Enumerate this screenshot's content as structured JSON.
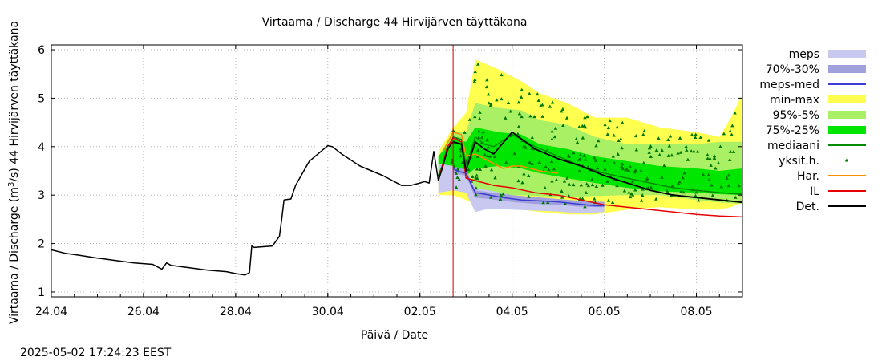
{
  "chart_data": {
    "type": "area",
    "title": "Virtaama / Discharge  44 Hirvijärven täyttäkana",
    "xlabel": "Päivä / Date",
    "ylabel_main": "Virtaama / Discharge (m",
    "ylabel_sup": "3",
    "ylabel_tail": "/s)  44 Hirvijärven täyttäkana",
    "x_unit": "days since 24.04",
    "xlim": [
      0,
      15
    ],
    "ylim": [
      0.9,
      6.1
    ],
    "x_ticks": [
      {
        "x": 0,
        "label": "24.04"
      },
      {
        "x": 2,
        "label": "26.04"
      },
      {
        "x": 4,
        "label": "28.04"
      },
      {
        "x": 6,
        "label": "30.04"
      },
      {
        "x": 8,
        "label": "02.05"
      },
      {
        "x": 10,
        "label": "04.05"
      },
      {
        "x": 12,
        "label": "06.05"
      },
      {
        "x": 14,
        "label": "08.05"
      }
    ],
    "y_ticks": [
      1,
      2,
      3,
      4,
      5,
      6
    ],
    "forecast_start_x": 8.72,
    "timestamp": "2025-05-02 17:24:23 EEST",
    "legend": [
      {
        "key": "meps",
        "label": "meps",
        "kind": "box",
        "color": "#c8c8f0"
      },
      {
        "key": "p7030",
        "label": "70%-30%",
        "kind": "box",
        "color": "#a0a0dc"
      },
      {
        "key": "meps_med",
        "label": "meps-med",
        "kind": "line",
        "color": "#3c3cd2"
      },
      {
        "key": "minmax",
        "label": "min-max",
        "kind": "box",
        "color": "#ffff50"
      },
      {
        "key": "p955",
        "label": "95%-5%",
        "kind": "box",
        "color": "#aaf064"
      },
      {
        "key": "p7525",
        "label": "75%-25%",
        "kind": "box",
        "color": "#00e600"
      },
      {
        "key": "median",
        "label": "mediaani",
        "kind": "line",
        "color": "#008c00"
      },
      {
        "key": "yksit",
        "label": "yksit.h.",
        "kind": "marker",
        "color": "#007800"
      },
      {
        "key": "har",
        "label": "Har.",
        "kind": "line",
        "color": "#ff8c00"
      },
      {
        "key": "il",
        "label": "IL",
        "kind": "line",
        "color": "#e60000"
      },
      {
        "key": "det",
        "label": "Det.",
        "kind": "line",
        "color": "#000000"
      }
    ],
    "observed": {
      "x": [
        0,
        0.3,
        0.6,
        1,
        1.4,
        1.8,
        2.2,
        2.4,
        2.5,
        2.6,
        3.0,
        3.4,
        3.8,
        4.0,
        4.2,
        4.3,
        4.35,
        4.4,
        4.8,
        4.95,
        5.0,
        5.05,
        5.2,
        5.3,
        5.6,
        6.0,
        6.1,
        6.3,
        6.7,
        7.2,
        7.6,
        7.8,
        8.0,
        8.1,
        8.2,
        8.3,
        8.4,
        8.5,
        8.6,
        8.72
      ],
      "y": [
        1.87,
        1.8,
        1.76,
        1.7,
        1.65,
        1.6,
        1.57,
        1.47,
        1.6,
        1.55,
        1.5,
        1.45,
        1.42,
        1.38,
        1.35,
        1.4,
        1.95,
        1.92,
        1.95,
        2.15,
        2.5,
        2.9,
        2.92,
        3.2,
        3.7,
        4.02,
        4.0,
        3.85,
        3.6,
        3.4,
        3.2,
        3.2,
        3.25,
        3.28,
        3.25,
        3.9,
        3.3,
        3.6,
        3.95,
        4.1
      ]
    },
    "series": [
      {
        "name": "meps-med",
        "x": [
          8.72,
          8.8,
          9.0,
          9.2,
          9.4,
          9.8,
          10.2,
          10.6,
          11.0,
          11.4,
          11.8,
          12.0
        ],
        "y": [
          3.55,
          3.5,
          3.45,
          3.05,
          3.02,
          2.95,
          2.9,
          2.88,
          2.86,
          2.82,
          2.78,
          2.78
        ]
      },
      {
        "name": "mediaani",
        "x": [
          8.4,
          8.6,
          8.72,
          8.9,
          9.0,
          9.2,
          9.4,
          9.6,
          10.0,
          10.5,
          11.0,
          11.5,
          12.0,
          12.5,
          13.0,
          13.5,
          14.0,
          14.5,
          15.0
        ],
        "y": [
          3.4,
          3.9,
          4.2,
          4.15,
          3.6,
          4.2,
          4.05,
          4.0,
          4.25,
          4.0,
          3.8,
          3.6,
          3.45,
          3.35,
          3.25,
          3.15,
          3.1,
          3.05,
          3.02
        ]
      },
      {
        "name": "Har.",
        "x": [
          8.5,
          8.72,
          8.9,
          9.0,
          9.2,
          9.4,
          9.6,
          9.8,
          10.0,
          10.2,
          10.6,
          11.0
        ],
        "y": [
          3.9,
          4.3,
          4.25,
          3.8,
          3.85,
          3.75,
          3.65,
          3.55,
          3.6,
          3.6,
          3.5,
          3.45
        ]
      },
      {
        "name": "IL",
        "x": [
          8.4,
          8.6,
          8.72,
          8.9,
          9.0,
          9.2,
          9.6,
          10.0,
          10.5,
          11.0,
          11.5,
          12.0,
          12.5,
          13.0,
          13.5,
          14.0,
          14.5,
          15.0
        ],
        "y": [
          3.3,
          4.0,
          4.18,
          4.1,
          3.35,
          3.3,
          3.2,
          3.15,
          3.05,
          3.0,
          2.9,
          2.8,
          2.75,
          2.7,
          2.65,
          2.6,
          2.57,
          2.55
        ]
      },
      {
        "name": "Det.",
        "x": [
          8.72,
          8.9,
          9.0,
          9.2,
          9.4,
          9.6,
          10.0,
          10.5,
          11.0,
          11.5,
          12.0,
          12.5,
          13.0,
          13.5,
          14.0,
          14.5,
          15.0
        ],
        "y": [
          4.1,
          4.05,
          3.5,
          4.1,
          3.95,
          3.85,
          4.3,
          3.95,
          3.75,
          3.6,
          3.4,
          3.25,
          3.1,
          3.0,
          2.95,
          2.9,
          2.85
        ]
      }
    ],
    "bands": [
      {
        "name": "min-max",
        "x": [
          8.4,
          8.72,
          9.0,
          9.2,
          9.7,
          10.2,
          10.6,
          11.2,
          11.8,
          12.5,
          13.2,
          14.0,
          14.5,
          14.75,
          15.0
        ],
        "lower": [
          3.0,
          3.0,
          2.9,
          2.8,
          2.75,
          2.7,
          2.65,
          2.6,
          2.6,
          2.7,
          2.75,
          2.7,
          2.7,
          2.75,
          2.85
        ],
        "upper": [
          3.9,
          4.4,
          4.7,
          5.8,
          5.6,
          5.35,
          5.1,
          4.9,
          4.6,
          4.6,
          4.4,
          4.3,
          4.2,
          4.6,
          5.1
        ]
      },
      {
        "name": "95%-5%",
        "x": [
          8.4,
          8.72,
          9.0,
          9.2,
          9.7,
          10.2,
          10.6,
          11.2,
          11.8,
          12.5,
          13.2,
          14.0,
          14.5,
          15.0
        ],
        "lower": [
          3.2,
          3.3,
          3.1,
          3.05,
          3.0,
          3.0,
          2.98,
          2.96,
          2.98,
          3.0,
          3.0,
          2.9,
          2.85,
          2.82
        ],
        "upper": [
          3.8,
          4.3,
          4.3,
          4.9,
          4.8,
          4.75,
          4.55,
          4.45,
          4.2,
          4.05,
          4.05,
          4.05,
          4.1,
          4.1
        ]
      },
      {
        "name": "75%-25%",
        "x": [
          8.4,
          8.72,
          9.0,
          9.2,
          9.7,
          10.2,
          10.6,
          11.2,
          11.8,
          12.5,
          13.2,
          14.0,
          14.5,
          15.0
        ],
        "lower": [
          3.4,
          3.6,
          3.4,
          3.55,
          3.6,
          3.55,
          3.45,
          3.35,
          3.25,
          3.15,
          3.08,
          3.05,
          3.02,
          3.0
        ],
        "upper": [
          3.8,
          4.15,
          4.1,
          4.4,
          4.3,
          4.25,
          4.05,
          3.95,
          3.8,
          3.7,
          3.6,
          3.55,
          3.5,
          3.55
        ]
      },
      {
        "name": "meps",
        "x": [
          8.4,
          8.72,
          9.0,
          9.2,
          9.5,
          10.0,
          10.5,
          11.0,
          11.5,
          12.0
        ],
        "lower": [
          3.05,
          3.1,
          3.05,
          2.65,
          2.72,
          2.7,
          2.68,
          2.66,
          2.62,
          2.65
        ],
        "upper": [
          3.65,
          3.6,
          3.5,
          3.15,
          3.1,
          3.0,
          2.95,
          2.9,
          2.85,
          2.85
        ]
      },
      {
        "name": "70%-30%",
        "x": [
          8.72,
          9.0,
          9.2,
          9.5,
          10.0,
          10.5,
          11.0,
          11.5,
          12.0
        ],
        "lower": [
          3.45,
          3.4,
          2.95,
          2.92,
          2.86,
          2.82,
          2.8,
          2.76,
          2.75
        ],
        "upper": [
          3.6,
          3.52,
          3.1,
          3.06,
          3.0,
          2.96,
          2.92,
          2.88,
          2.86
        ]
      }
    ]
  }
}
